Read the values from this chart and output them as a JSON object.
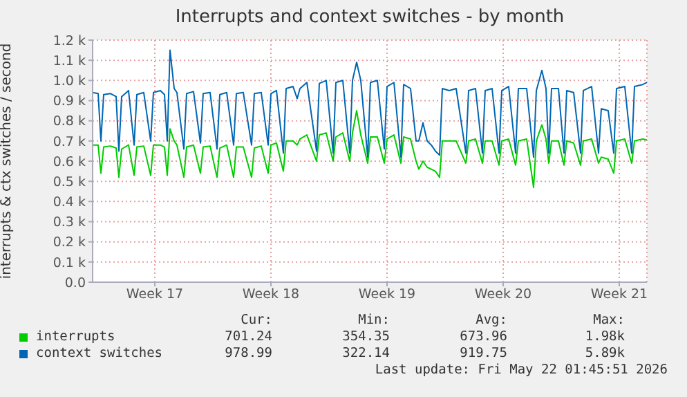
{
  "chart_data": {
    "type": "line",
    "title": "Interrupts and context switches - by month",
    "ylabel": "interrupts & ctx switches / second",
    "x": [
      "2026-04-19T18:00",
      "2026-04-20T02:00",
      "2026-04-20T06:00",
      "2026-04-20T10:00",
      "2026-04-20T20:00",
      "2026-04-21T04:00",
      "2026-04-21T08:00",
      "2026-04-21T12:00",
      "2026-04-21T22:00",
      "2026-04-22T06:00",
      "2026-04-22T10:00",
      "2026-04-22T20:00",
      "2026-04-23T06:00",
      "2026-04-23T10:00",
      "2026-04-23T20:00",
      "2026-04-24T02:00",
      "2026-04-24T06:00",
      "2026-04-24T10:00",
      "2026-04-24T16:00",
      "2026-04-24T20:00",
      "2026-04-25T06:00",
      "2026-04-25T10:00",
      "2026-04-25T20:00",
      "2026-04-26T06:00",
      "2026-04-26T10:00",
      "2026-04-26T20:00",
      "2026-04-27T06:00",
      "2026-04-27T10:00",
      "2026-04-27T20:00",
      "2026-04-28T06:00",
      "2026-04-28T10:00",
      "2026-04-28T20:00",
      "2026-04-29T08:00",
      "2026-04-29T12:00",
      "2026-04-29T22:00",
      "2026-04-30T08:00",
      "2026-04-30T12:00",
      "2026-04-30T20:00",
      "2026-05-01T06:00",
      "2026-05-01T10:00",
      "2026-05-01T20:00",
      "2026-05-02T02:00",
      "2026-05-02T06:00",
      "2026-05-02T16:00",
      "2026-05-03T06:00",
      "2026-05-03T10:00",
      "2026-05-03T20:00",
      "2026-05-04T06:00",
      "2026-05-04T10:00",
      "2026-05-04T20:00",
      "2026-05-05T06:00",
      "2026-05-05T10:00",
      "2026-05-05T16:00",
      "2026-05-05T22:00",
      "2026-05-06T08:00",
      "2026-05-06T12:00",
      "2026-05-06T22:00",
      "2026-05-07T08:00",
      "2026-05-07T12:00",
      "2026-05-07T22:00",
      "2026-05-08T08:00",
      "2026-05-08T12:00",
      "2026-05-08T22:00",
      "2026-05-09T06:00",
      "2026-05-09T10:00",
      "2026-05-09T16:00",
      "2026-05-09T22:00",
      "2026-05-10T04:00",
      "2026-05-10T10:00",
      "2026-05-10T16:00",
      "2026-05-10T20:00",
      "2026-05-11T06:00",
      "2026-05-11T16:00",
      "2026-05-12T06:00",
      "2026-05-12T10:00",
      "2026-05-12T20:00",
      "2026-05-13T06:00",
      "2026-05-13T10:00",
      "2026-05-13T20:00",
      "2026-05-14T06:00",
      "2026-05-14T10:00",
      "2026-05-14T20:00",
      "2026-05-15T06:00",
      "2026-05-15T10:00",
      "2026-05-15T22:00",
      "2026-05-16T08:00",
      "2026-05-16T12:00",
      "2026-05-16T20:00",
      "2026-05-17T02:00",
      "2026-05-17T06:00",
      "2026-05-17T10:00",
      "2026-05-17T20:00",
      "2026-05-18T04:00",
      "2026-05-18T08:00",
      "2026-05-18T18:00",
      "2026-05-19T04:00",
      "2026-05-19T08:00",
      "2026-05-19T20:00",
      "2026-05-20T06:00",
      "2026-05-20T10:00",
      "2026-05-20T20:00",
      "2026-05-21T04:00",
      "2026-05-21T08:00",
      "2026-05-21T20:00",
      "2026-05-22T06:00",
      "2026-05-22T10:00",
      "2026-05-22T22:00",
      "2026-05-23T04:00"
    ],
    "series": [
      {
        "name": "interrupts",
        "color": "#00cc00",
        "values": [
          680,
          680,
          540,
          670,
          675,
          665,
          520,
          660,
          680,
          530,
          670,
          675,
          530,
          680,
          680,
          670,
          530,
          760,
          700,
          680,
          520,
          670,
          680,
          540,
          670,
          675,
          520,
          665,
          680,
          520,
          670,
          670,
          520,
          665,
          675,
          540,
          680,
          690,
          550,
          700,
          700,
          680,
          710,
          730,
          600,
          730,
          740,
          600,
          720,
          740,
          600,
          740,
          850,
          730,
          590,
          720,
          720,
          590,
          710,
          730,
          590,
          720,
          710,
          600,
          560,
          600,
          570,
          560,
          550,
          520,
          700,
          700,
          700,
          590,
          700,
          710,
          590,
          700,
          700,
          580,
          700,
          710,
          580,
          700,
          710,
          470,
          700,
          780,
          710,
          590,
          700,
          700,
          580,
          700,
          690,
          580,
          700,
          710,
          590,
          620,
          610,
          540,
          700,
          710,
          590,
          700,
          710,
          705
        ]
      },
      {
        "name": "context switches",
        "color": "#0066b3",
        "values": [
          940,
          935,
          700,
          930,
          935,
          920,
          650,
          920,
          950,
          680,
          930,
          940,
          700,
          940,
          950,
          930,
          700,
          1150,
          960,
          940,
          660,
          935,
          945,
          690,
          935,
          940,
          660,
          930,
          940,
          680,
          935,
          940,
          680,
          935,
          940,
          680,
          935,
          950,
          640,
          960,
          970,
          910,
          960,
          990,
          650,
          985,
          1000,
          640,
          990,
          1000,
          640,
          1000,
          1090,
          1000,
          620,
          990,
          1000,
          660,
          970,
          990,
          620,
          980,
          960,
          700,
          700,
          790,
          700,
          680,
          650,
          630,
          960,
          950,
          960,
          640,
          950,
          960,
          640,
          950,
          960,
          640,
          950,
          970,
          640,
          960,
          960,
          620,
          950,
          1050,
          960,
          640,
          960,
          960,
          640,
          950,
          940,
          640,
          950,
          970,
          640,
          860,
          850,
          640,
          960,
          970,
          640,
          970,
          980,
          990
        ]
      }
    ],
    "xlim": [
      "2026-04-19T18:00",
      "2026-05-23T04:00"
    ],
    "xticks": [
      {
        "value": "2026-04-23T12:00",
        "label": "Week 17"
      },
      {
        "value": "2026-04-30T12:00",
        "label": "Week 18"
      },
      {
        "value": "2026-05-07T12:00",
        "label": "Week 19"
      },
      {
        "value": "2026-05-14T12:00",
        "label": "Week 20"
      },
      {
        "value": "2026-05-21T12:00",
        "label": "Week 21"
      }
    ],
    "ylim": [
      0,
      1200
    ],
    "yticks": [
      {
        "value": 0,
        "label": "0.0"
      },
      {
        "value": 100,
        "label": "0.1 k"
      },
      {
        "value": 200,
        "label": "0.2 k"
      },
      {
        "value": 300,
        "label": "0.3 k"
      },
      {
        "value": 400,
        "label": "0.4 k"
      },
      {
        "value": 500,
        "label": "0.5 k"
      },
      {
        "value": 600,
        "label": "0.6 k"
      },
      {
        "value": 700,
        "label": "0.7 k"
      },
      {
        "value": 800,
        "label": "0.8 k"
      },
      {
        "value": 900,
        "label": "0.9 k"
      },
      {
        "value": 1000,
        "label": "1.0 k"
      },
      {
        "value": 1100,
        "label": "1.1 k"
      },
      {
        "value": 1200,
        "label": "1.2 k"
      }
    ],
    "grid": true,
    "legend": "bottom",
    "marker": "none",
    "line_style": "solid",
    "annotations": [
      "Cur:",
      "Min:",
      "Avg:",
      "Max:",
      "701.24",
      "354.35",
      "673.96",
      "1.98k",
      "978.99",
      "322.14",
      "919.75",
      "5.89k",
      "Last update: Fri May 22 01:45:51 2026"
    ]
  }
}
